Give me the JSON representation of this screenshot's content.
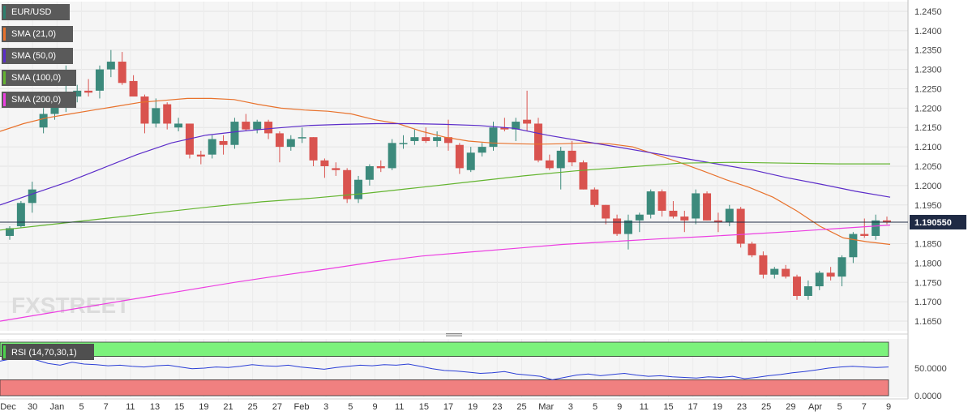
{
  "chart_data": {
    "type": "candlestick",
    "symbol": "EUR/USD",
    "y_ticks": [
      "1.2450",
      "1.2400",
      "1.2350",
      "1.2300",
      "1.2250",
      "1.2200",
      "1.2150",
      "1.2100",
      "1.2050",
      "1.2000",
      "1.1950",
      "1.1900",
      "1.1850",
      "1.1800",
      "1.1750",
      "1.1700",
      "1.1650"
    ],
    "ylim": [
      1.1625,
      1.2475
    ],
    "x_ticks": [
      "Dec",
      "30",
      "Jan",
      "5",
      "7",
      "11",
      "13",
      "15",
      "19",
      "21",
      "25",
      "27",
      "Feb",
      "3",
      "5",
      "9",
      "11",
      "15",
      "17",
      "19",
      "23",
      "25",
      "Mar",
      "3",
      "5",
      "9",
      "11",
      "15",
      "17",
      "19",
      "23",
      "25",
      "29",
      "Apr",
      "5",
      "7",
      "9"
    ],
    "last_price_label": "1.190550",
    "last_price": 1.19055,
    "candles": [
      {
        "o": 1.187,
        "h": 1.1895,
        "l": 1.186,
        "c": 1.189
      },
      {
        "o": 1.1895,
        "h": 1.196,
        "l": 1.189,
        "c": 1.1955
      },
      {
        "o": 1.1955,
        "h": 1.201,
        "l": 1.193,
        "c": 1.199
      },
      {
        "o": 1.215,
        "h": 1.22,
        "l": 1.2135,
        "c": 1.2185
      },
      {
        "o": 1.2185,
        "h": 1.223,
        "l": 1.217,
        "c": 1.2215
      },
      {
        "o": 1.2215,
        "h": 1.231,
        "l": 1.219,
        "c": 1.224
      },
      {
        "o": 1.223,
        "h": 1.226,
        "l": 1.2215,
        "c": 1.2245
      },
      {
        "o": 1.2245,
        "h": 1.2275,
        "l": 1.223,
        "c": 1.224
      },
      {
        "o": 1.2245,
        "h": 1.231,
        "l": 1.2225,
        "c": 1.23
      },
      {
        "o": 1.23,
        "h": 1.235,
        "l": 1.228,
        "c": 1.232
      },
      {
        "o": 1.232,
        "h": 1.2345,
        "l": 1.226,
        "c": 1.2265
      },
      {
        "o": 1.227,
        "h": 1.2285,
        "l": 1.223,
        "c": 1.223
      },
      {
        "o": 1.223,
        "h": 1.2235,
        "l": 1.2135,
        "c": 1.216
      },
      {
        "o": 1.216,
        "h": 1.2225,
        "l": 1.215,
        "c": 1.22
      },
      {
        "o": 1.221,
        "h": 1.2215,
        "l": 1.2145,
        "c": 1.216
      },
      {
        "o": 1.215,
        "h": 1.2175,
        "l": 1.214,
        "c": 1.216
      },
      {
        "o": 1.216,
        "h": 1.216,
        "l": 1.207,
        "c": 1.208
      },
      {
        "o": 1.208,
        "h": 1.209,
        "l": 1.2055,
        "c": 1.2075
      },
      {
        "o": 1.208,
        "h": 1.213,
        "l": 1.207,
        "c": 1.212
      },
      {
        "o": 1.2115,
        "h": 1.213,
        "l": 1.208,
        "c": 1.2105
      },
      {
        "o": 1.2105,
        "h": 1.2175,
        "l": 1.2095,
        "c": 1.2165
      },
      {
        "o": 1.2165,
        "h": 1.2185,
        "l": 1.214,
        "c": 1.2145
      },
      {
        "o": 1.2145,
        "h": 1.217,
        "l": 1.2135,
        "c": 1.2165
      },
      {
        "o": 1.2165,
        "h": 1.217,
        "l": 1.212,
        "c": 1.2135
      },
      {
        "o": 1.2135,
        "h": 1.214,
        "l": 1.206,
        "c": 1.21
      },
      {
        "o": 1.21,
        "h": 1.213,
        "l": 1.209,
        "c": 1.212
      },
      {
        "o": 1.2125,
        "h": 1.215,
        "l": 1.211,
        "c": 1.2125
      },
      {
        "o": 1.2125,
        "h": 1.2125,
        "l": 1.205,
        "c": 1.2065
      },
      {
        "o": 1.2065,
        "h": 1.207,
        "l": 1.202,
        "c": 1.205
      },
      {
        "o": 1.2045,
        "h": 1.206,
        "l": 1.2025,
        "c": 1.204
      },
      {
        "o": 1.204,
        "h": 1.2045,
        "l": 1.1955,
        "c": 1.1965
      },
      {
        "o": 1.1965,
        "h": 1.2025,
        "l": 1.1955,
        "c": 1.2015
      },
      {
        "o": 1.2015,
        "h": 1.2055,
        "l": 1.2,
        "c": 1.205
      },
      {
        "o": 1.205,
        "h": 1.2065,
        "l": 1.2035,
        "c": 1.2045
      },
      {
        "o": 1.2045,
        "h": 1.212,
        "l": 1.204,
        "c": 1.211
      },
      {
        "o": 1.211,
        "h": 1.213,
        "l": 1.2095,
        "c": 1.211
      },
      {
        "o": 1.2115,
        "h": 1.2145,
        "l": 1.2105,
        "c": 1.2125
      },
      {
        "o": 1.2125,
        "h": 1.215,
        "l": 1.211,
        "c": 1.2115
      },
      {
        "o": 1.2115,
        "h": 1.214,
        "l": 1.21,
        "c": 1.2125
      },
      {
        "o": 1.2125,
        "h": 1.217,
        "l": 1.209,
        "c": 1.211
      },
      {
        "o": 1.2105,
        "h": 1.211,
        "l": 1.203,
        "c": 1.2045
      },
      {
        "o": 1.204,
        "h": 1.21,
        "l": 1.2035,
        "c": 1.2085
      },
      {
        "o": 1.2085,
        "h": 1.211,
        "l": 1.2075,
        "c": 1.21
      },
      {
        "o": 1.21,
        "h": 1.2165,
        "l": 1.209,
        "c": 1.215
      },
      {
        "o": 1.215,
        "h": 1.2175,
        "l": 1.214,
        "c": 1.2145
      },
      {
        "o": 1.2145,
        "h": 1.2175,
        "l": 1.2115,
        "c": 1.2165
      },
      {
        "o": 1.217,
        "h": 1.2245,
        "l": 1.214,
        "c": 1.216
      },
      {
        "o": 1.216,
        "h": 1.2175,
        "l": 1.206,
        "c": 1.2065
      },
      {
        "o": 1.2065,
        "h": 1.208,
        "l": 1.204,
        "c": 1.2045
      },
      {
        "o": 1.2045,
        "h": 1.21,
        "l": 1.199,
        "c": 1.209
      },
      {
        "o": 1.209,
        "h": 1.2115,
        "l": 1.205,
        "c": 1.206
      },
      {
        "o": 1.206,
        "h": 1.2065,
        "l": 1.199,
        "c": 1.199
      },
      {
        "o": 1.199,
        "h": 1.1995,
        "l": 1.1945,
        "c": 1.195
      },
      {
        "o": 1.195,
        "h": 1.195,
        "l": 1.19,
        "c": 1.1915
      },
      {
        "o": 1.1915,
        "h": 1.1925,
        "l": 1.187,
        "c": 1.1875
      },
      {
        "o": 1.1875,
        "h": 1.1925,
        "l": 1.1835,
        "c": 1.191
      },
      {
        "o": 1.191,
        "h": 1.193,
        "l": 1.188,
        "c": 1.1925
      },
      {
        "o": 1.1925,
        "h": 1.199,
        "l": 1.1915,
        "c": 1.1985
      },
      {
        "o": 1.1985,
        "h": 1.199,
        "l": 1.192,
        "c": 1.1935
      },
      {
        "o": 1.1935,
        "h": 1.196,
        "l": 1.1915,
        "c": 1.192
      },
      {
        "o": 1.192,
        "h": 1.1935,
        "l": 1.188,
        "c": 1.191
      },
      {
        "o": 1.1915,
        "h": 1.199,
        "l": 1.19,
        "c": 1.198
      },
      {
        "o": 1.198,
        "h": 1.1985,
        "l": 1.191,
        "c": 1.191
      },
      {
        "o": 1.191,
        "h": 1.193,
        "l": 1.188,
        "c": 1.1905
      },
      {
        "o": 1.1905,
        "h": 1.195,
        "l": 1.1895,
        "c": 1.194
      },
      {
        "o": 1.194,
        "h": 1.1945,
        "l": 1.184,
        "c": 1.185
      },
      {
        "o": 1.185,
        "h": 1.1855,
        "l": 1.1815,
        "c": 1.182
      },
      {
        "o": 1.182,
        "h": 1.183,
        "l": 1.176,
        "c": 1.177
      },
      {
        "o": 1.177,
        "h": 1.179,
        "l": 1.176,
        "c": 1.1785
      },
      {
        "o": 1.1785,
        "h": 1.1795,
        "l": 1.176,
        "c": 1.1765
      },
      {
        "o": 1.1765,
        "h": 1.177,
        "l": 1.1705,
        "c": 1.1715
      },
      {
        "o": 1.1715,
        "h": 1.1755,
        "l": 1.1705,
        "c": 1.174
      },
      {
        "o": 1.174,
        "h": 1.178,
        "l": 1.173,
        "c": 1.1775
      },
      {
        "o": 1.1775,
        "h": 1.179,
        "l": 1.1755,
        "c": 1.1765
      },
      {
        "o": 1.1765,
        "h": 1.182,
        "l": 1.174,
        "c": 1.1815
      },
      {
        "o": 1.1815,
        "h": 1.188,
        "l": 1.18,
        "c": 1.1875
      },
      {
        "o": 1.1875,
        "h": 1.1915,
        "l": 1.1865,
        "c": 1.187
      },
      {
        "o": 1.187,
        "h": 1.1925,
        "l": 1.186,
        "c": 1.191
      },
      {
        "o": 1.191,
        "h": 1.192,
        "l": 1.19,
        "c": 1.1905
      }
    ],
    "series": [
      {
        "name": "SMA (21,0)",
        "color": "#e8722c",
        "values": [
          1.214,
          1.216,
          1.2175,
          1.2185,
          1.2195,
          1.2205,
          1.2215,
          1.222,
          1.2225,
          1.2225,
          1.2222,
          1.221,
          1.22,
          1.2195,
          1.2192,
          1.2185,
          1.217,
          1.216,
          1.214,
          1.2125,
          1.2115,
          1.211,
          1.2108,
          1.2107,
          1.2108,
          1.211,
          1.2108,
          1.21,
          1.208,
          1.206,
          1.2038,
          1.2015,
          1.1995,
          1.197,
          1.1935,
          1.1895,
          1.1865,
          1.1855,
          1.1848
        ]
      },
      {
        "name": "SMA (50,0)",
        "color": "#5b2cc9",
        "values": [
          1.195,
          1.198,
          1.201,
          1.2045,
          1.208,
          1.211,
          1.213,
          1.214,
          1.2148,
          1.2155,
          1.2158,
          1.216,
          1.216,
          1.2158,
          1.2155,
          1.2148,
          1.213,
          1.2115,
          1.21,
          1.2085,
          1.207,
          1.2055,
          1.204,
          1.202,
          1.2003,
          1.1985,
          1.197
        ]
      },
      {
        "name": "SMA (100,0)",
        "color": "#63b42f",
        "values": [
          1.1885,
          1.19,
          1.1915,
          1.193,
          1.1945,
          1.1958,
          1.1968,
          1.198,
          1.1995,
          1.201,
          1.2025,
          1.2038,
          1.2048,
          1.2058,
          1.206,
          1.2058,
          1.2056,
          1.2056
        ]
      },
      {
        "name": "SMA (200,0)",
        "color": "#ec3ee1",
        "values": [
          1.165,
          1.167,
          1.169,
          1.171,
          1.173,
          1.175,
          1.1768,
          1.1785,
          1.1803,
          1.1818,
          1.1828,
          1.1838,
          1.1848,
          1.1855,
          1.1862,
          1.1868,
          1.1875,
          1.1882,
          1.189,
          1.1898
        ]
      }
    ],
    "rsi": {
      "label": "RSI (14,70,30,1)",
      "ticks": [
        "50.0000",
        "0.0000"
      ],
      "overbought": 70,
      "oversold": 30,
      "values": [
        62,
        66,
        70,
        64,
        58,
        55,
        60,
        57,
        56,
        54,
        55,
        53,
        52,
        54,
        55,
        52,
        49,
        50,
        52,
        51,
        53,
        56,
        54,
        53,
        55,
        52,
        50,
        48,
        51,
        53,
        55,
        54,
        56,
        55,
        57,
        53,
        49,
        46,
        45,
        43,
        41,
        42,
        44,
        40,
        38,
        36,
        30,
        34,
        38,
        40,
        37,
        39,
        41,
        38,
        36,
        37,
        35,
        34,
        33,
        35,
        34,
        36,
        32,
        34,
        37,
        39,
        42,
        44,
        47,
        50,
        52,
        53,
        52,
        51,
        52
      ]
    },
    "watermark": "FXSTREET"
  }
}
